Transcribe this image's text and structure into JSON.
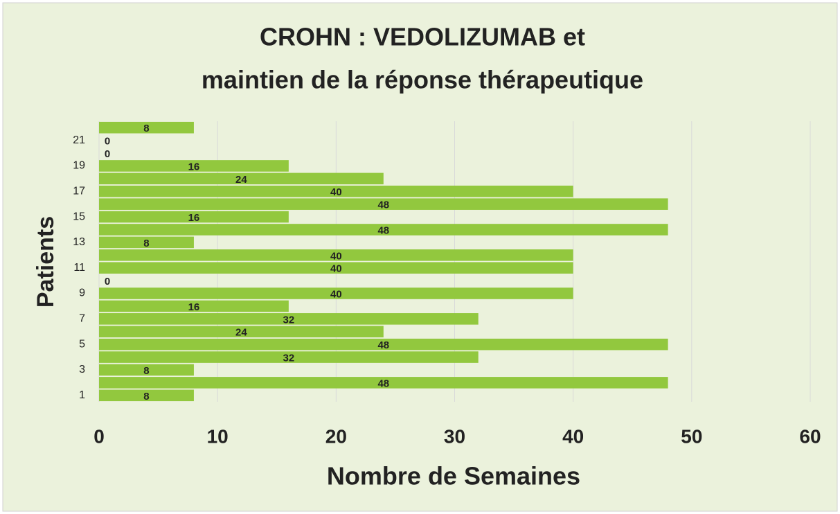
{
  "chart_data": {
    "type": "bar",
    "orientation": "horizontal",
    "title": "CROHN : VEDOLIZUMAB et",
    "subtitle": "maintien de la réponse thérapeutique",
    "x_label": "Nombre de Semaines",
    "y_label": "Patients",
    "categories": [
      "1",
      null,
      "3",
      null,
      "5",
      null,
      "7",
      null,
      "9",
      null,
      "11",
      null,
      "13",
      null,
      "15",
      null,
      "17",
      null,
      "19",
      null,
      "21",
      null
    ],
    "values": [
      8,
      48,
      8,
      32,
      48,
      24,
      32,
      16,
      40,
      0,
      40,
      40,
      8,
      48,
      16,
      48,
      40,
      24,
      16,
      0,
      0,
      8
    ],
    "color": "#92c83e",
    "xlim": [
      0,
      60
    ],
    "xticks": [
      0,
      10,
      20,
      30,
      40,
      50,
      60
    ],
    "grid": true
  }
}
